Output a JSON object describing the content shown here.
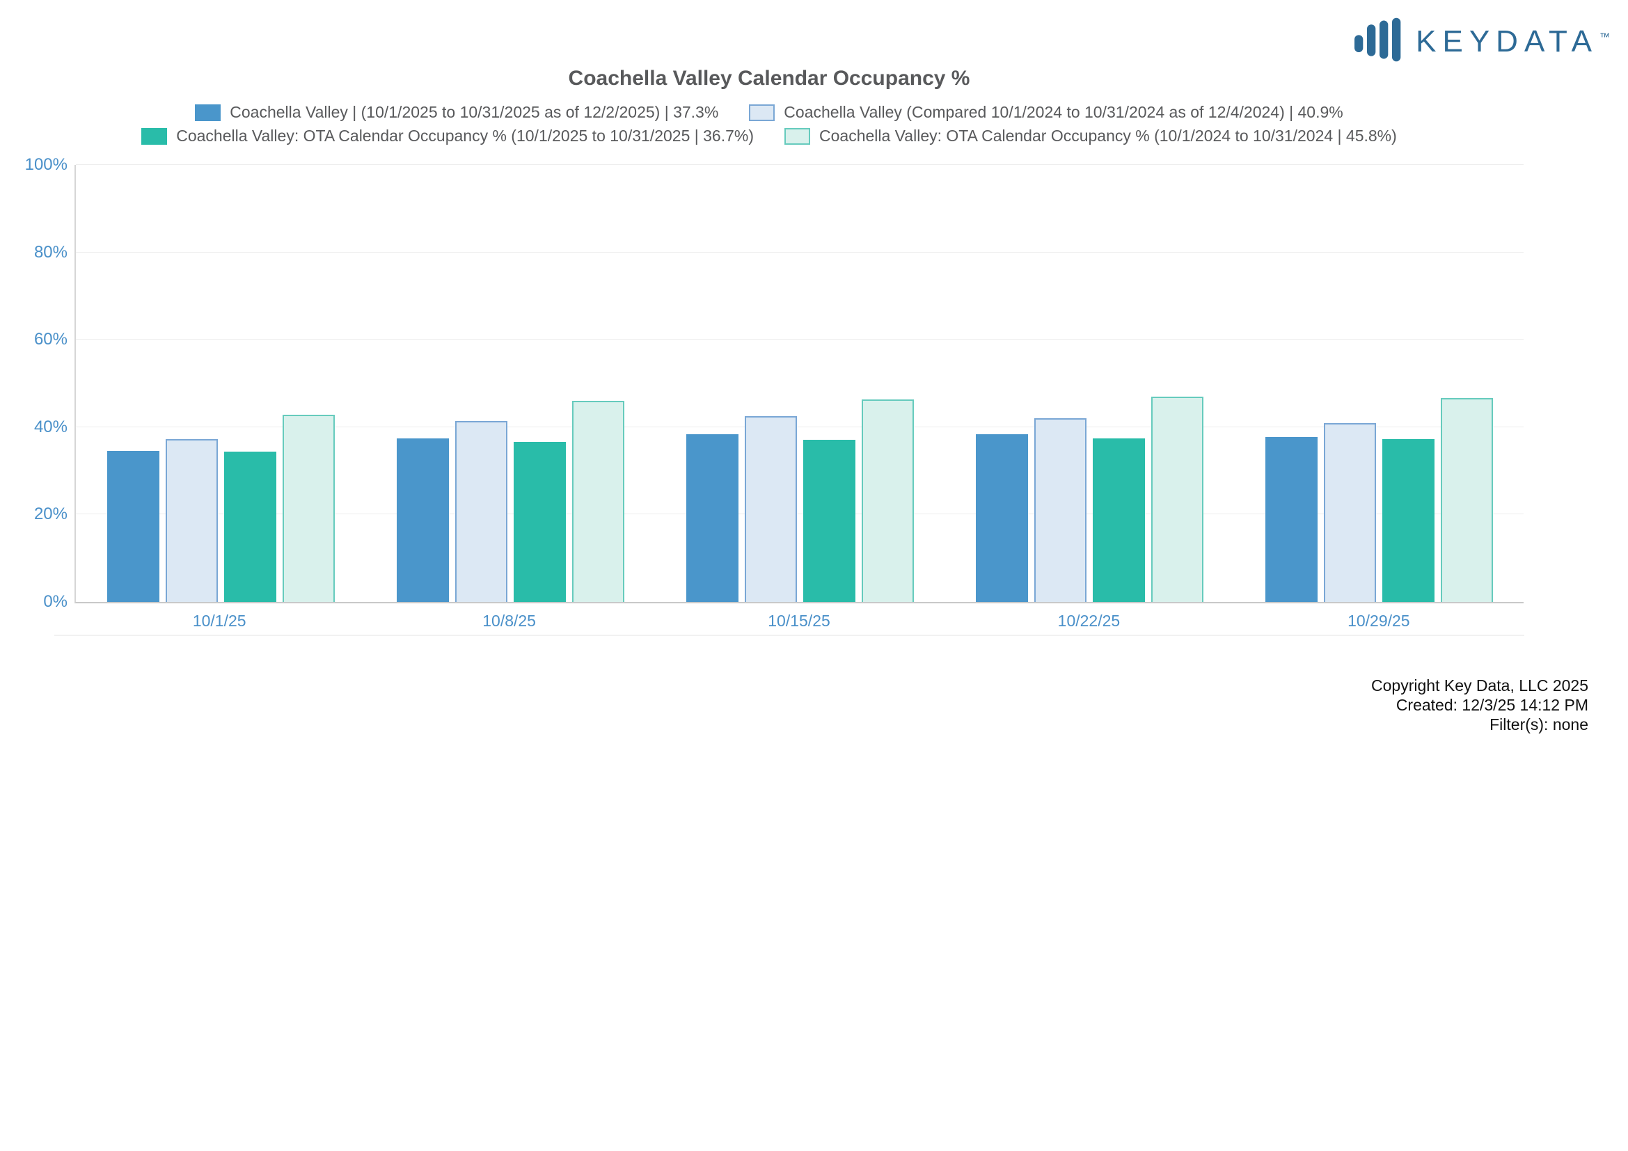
{
  "logo": {
    "brand": "KEYDATA",
    "tm": "TM",
    "color": "#2d6a96"
  },
  "chart_data": {
    "type": "bar",
    "title": "Coachella Valley Calendar Occupancy %",
    "categories": [
      "10/1/25",
      "10/8/25",
      "10/15/25",
      "10/22/25",
      "10/29/25"
    ],
    "series": [
      {
        "name": "Coachella Valley | (10/1/2025 to 10/31/2025 as of 12/2/2025) | 37.3%",
        "values": [
          34.6,
          37.5,
          38.4,
          38.3,
          37.8
        ],
        "fill": "#4a96cb",
        "border": "#4a96cb",
        "legend_row": 1
      },
      {
        "name": "Coachella Valley (Compared 10/1/2024 to 10/31/2024 as of 12/4/2024) | 40.9%",
        "values": [
          37.3,
          41.4,
          42.5,
          42.1,
          40.9
        ],
        "fill": "#dce8f4",
        "border": "#7aa7d5",
        "legend_row": 1
      },
      {
        "name": "Coachella Valley: OTA Calendar Occupancy % (10/1/2025 to 10/31/2025 | 36.7%)",
        "values": [
          34.4,
          36.7,
          37.1,
          37.5,
          37.2
        ],
        "fill": "#29bca9",
        "border": "#29bca9",
        "legend_row": 2
      },
      {
        "name": "Coachella Valley: OTA Calendar Occupancy % (10/1/2024 to 10/31/2024 | 45.8%)",
        "values": [
          42.8,
          46.1,
          46.3,
          47.0,
          46.6
        ],
        "fill": "#d9f1ec",
        "border": "#66cbbd",
        "legend_row": 2
      }
    ],
    "ylim": [
      0,
      100
    ],
    "yticks": [
      "0%",
      "20%",
      "40%",
      "60%",
      "80%",
      "100%"
    ],
    "grid": true,
    "legend_position": "top",
    "axis_label_color": "#4a90c9"
  },
  "footer": {
    "line1": "Copyright Key Data, LLC 2025",
    "line2": "Created: 12/3/25 14:12 PM",
    "line3": "Filter(s): none"
  }
}
